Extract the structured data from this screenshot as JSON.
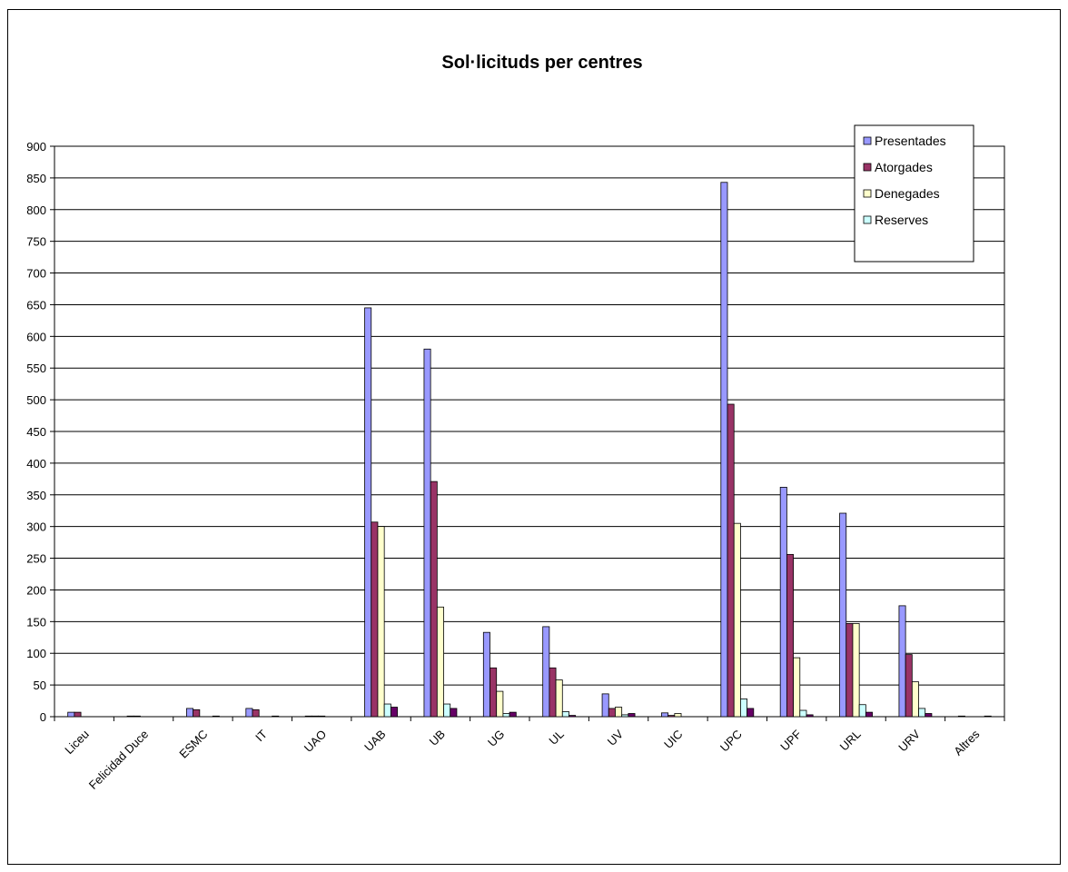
{
  "chart_data": {
    "type": "bar",
    "title": "Sol·licituds per centres",
    "xlabel": "",
    "ylabel": "",
    "ylim": [
      0,
      900
    ],
    "yticks": [
      0,
      50,
      100,
      150,
      200,
      250,
      300,
      350,
      400,
      450,
      500,
      550,
      600,
      650,
      700,
      750,
      800,
      850,
      900
    ],
    "grid": true,
    "legend_position": "top-right",
    "categories": [
      "Liceu",
      "Felicidad Duce",
      "ESMC",
      "IT",
      "UAO",
      "UAB",
      "UB",
      "UG",
      "UL",
      "UV",
      "UIC",
      "UPC",
      "UPF",
      "URL",
      "URV",
      "Altres"
    ],
    "series": [
      {
        "name": "Presentades",
        "color": "#9999ff",
        "values": [
          7,
          1,
          13,
          13,
          1,
          645,
          580,
          133,
          142,
          36,
          6,
          843,
          362,
          321,
          175,
          1
        ]
      },
      {
        "name": "Atorgades",
        "color": "#993366",
        "values": [
          7,
          1,
          11,
          11,
          1,
          307,
          371,
          77,
          77,
          13,
          2,
          493,
          256,
          147,
          98,
          0
        ]
      },
      {
        "name": "Denegades",
        "color": "#ffffcc",
        "values": [
          0,
          0,
          0,
          0,
          1,
          300,
          173,
          40,
          58,
          15,
          5,
          305,
          93,
          147,
          55,
          0
        ]
      },
      {
        "name": "Reserves",
        "color": "#ccffff",
        "values": [
          0,
          0,
          0,
          0,
          0,
          20,
          20,
          5,
          8,
          3,
          0,
          28,
          10,
          19,
          13,
          0
        ]
      },
      {
        "name": "",
        "color": "#660066",
        "values": [
          0,
          0,
          1,
          1,
          0,
          15,
          13,
          7,
          2,
          5,
          0,
          13,
          3,
          7,
          5,
          1
        ]
      }
    ]
  }
}
